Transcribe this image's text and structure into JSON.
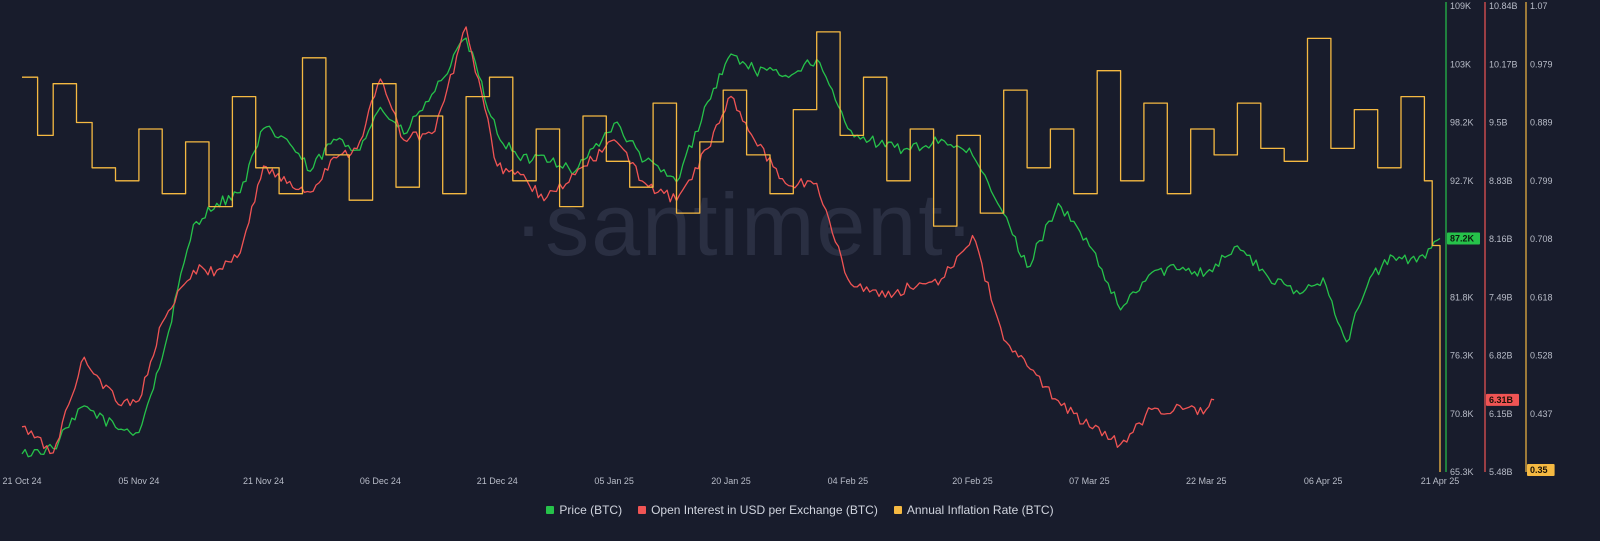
{
  "watermark": "·santiment·",
  "chart_data": {
    "type": "line",
    "x_ticks": [
      "21 Oct 24",
      "05 Nov 24",
      "21 Nov 24",
      "06 Dec 24",
      "21 Dec 24",
      "05 Jan 25",
      "20 Jan 25",
      "04 Feb 25",
      "20 Feb 25",
      "07 Mar 25",
      "22 Mar 25",
      "06 Apr 25",
      "21 Apr 25"
    ],
    "axes": [
      {
        "id": "price",
        "color": "#26c24a",
        "ticks": [
          "109K",
          "103K",
          "98.2K",
          "92.7K",
          "87.2K",
          "81.8K",
          "76.3K",
          "70.8K",
          "65.3K"
        ],
        "range": [
          65300,
          109000
        ],
        "current_label": "87.2K"
      },
      {
        "id": "oi",
        "color": "#f05454",
        "ticks": [
          "10.84B",
          "10.17B",
          "9.5B",
          "8.83B",
          "8.16B",
          "7.49B",
          "6.82B",
          "6.15B",
          "5.48B"
        ],
        "range": [
          5.48,
          10.84
        ],
        "current_label": "6.31B"
      },
      {
        "id": "inflation",
        "color": "#f5b942",
        "ticks": [
          "1.07",
          "0.979",
          "0.889",
          "0.799",
          "0.708",
          "0.618",
          "0.528",
          "0.437",
          "0.35"
        ],
        "range": [
          0.35,
          1.07
        ],
        "current_label": "0.35"
      }
    ],
    "series": [
      {
        "name": "Price (BTC)",
        "axis": "price",
        "color": "#26c24a",
        "x": [
          "21 Oct 24",
          "25 Oct 24",
          "29 Oct 24",
          "02 Nov 24",
          "05 Nov 24",
          "08 Nov 24",
          "12 Nov 24",
          "15 Nov 24",
          "18 Nov 24",
          "21 Nov 24",
          "24 Nov 24",
          "27 Nov 24",
          "30 Nov 24",
          "03 Dec 24",
          "06 Dec 24",
          "09 Dec 24",
          "13 Dec 24",
          "17 Dec 24",
          "21 Dec 24",
          "24 Dec 24",
          "27 Dec 24",
          "31 Dec 24",
          "05 Jan 25",
          "09 Jan 25",
          "13 Jan 25",
          "17 Jan 25",
          "20 Jan 25",
          "23 Jan 25",
          "27 Jan 25",
          "31 Jan 25",
          "04 Feb 25",
          "08 Feb 25",
          "12 Feb 25",
          "16 Feb 25",
          "20 Feb 25",
          "24 Feb 25",
          "27 Feb 25",
          "03 Mar 25",
          "07 Mar 25",
          "11 Mar 25",
          "15 Mar 25",
          "19 Mar 25",
          "22 Mar 25",
          "26 Mar 25",
          "30 Mar 25",
          "03 Apr 25",
          "06 Apr 25",
          "09 Apr 25",
          "12 Apr 25",
          "15 Apr 25",
          "18 Apr 25",
          "21 Apr 25"
        ],
        "values": [
          67000,
          67500,
          71500,
          69500,
          69000,
          76000,
          88500,
          90500,
          91500,
          97500,
          96500,
          93500,
          96500,
          95500,
          99500,
          97000,
          101000,
          106000,
          97000,
          94500,
          95000,
          93500,
          98000,
          94500,
          92500,
          100000,
          104500,
          103000,
          102500,
          104000,
          97500,
          96000,
          95500,
          96500,
          95000,
          89500,
          84500,
          90500,
          86500,
          80500,
          84000,
          84500,
          84000,
          86500,
          83500,
          82000,
          83500,
          77500,
          83500,
          85500,
          85000,
          87200
        ]
      },
      {
        "name": "Open Interest in USD per Exchange (BTC)",
        "axis": "oi",
        "color": "#f05454",
        "x": [
          "21 Oct 24",
          "25 Oct 24",
          "29 Oct 24",
          "02 Nov 24",
          "05 Nov 24",
          "08 Nov 24",
          "12 Nov 24",
          "15 Nov 24",
          "18 Nov 24",
          "21 Nov 24",
          "24 Nov 24",
          "27 Nov 24",
          "30 Nov 24",
          "03 Dec 24",
          "06 Dec 24",
          "09 Dec 24",
          "13 Dec 24",
          "17 Dec 24",
          "21 Dec 24",
          "24 Dec 24",
          "27 Dec 24",
          "31 Dec 24",
          "05 Jan 25",
          "09 Jan 25",
          "13 Jan 25",
          "17 Jan 25",
          "20 Jan 25",
          "23 Jan 25",
          "27 Jan 25",
          "31 Jan 25",
          "04 Feb 25",
          "08 Feb 25",
          "12 Feb 25",
          "16 Feb 25",
          "20 Feb 25",
          "24 Feb 25",
          "27 Feb 25",
          "03 Mar 25",
          "07 Mar 25",
          "11 Mar 25",
          "15 Mar 25",
          "19 Mar 25",
          "22 Mar 25",
          "23 Mar 25"
        ],
        "values": [
          6.0,
          5.7,
          6.8,
          6.3,
          6.3,
          7.2,
          7.8,
          7.8,
          8.0,
          9.0,
          8.8,
          8.7,
          9.1,
          9.2,
          10.0,
          9.3,
          9.4,
          10.6,
          9.0,
          8.9,
          8.6,
          8.9,
          9.3,
          8.8,
          8.6,
          9.2,
          9.8,
          9.3,
          8.8,
          8.8,
          7.7,
          7.5,
          7.6,
          7.7,
          8.2,
          7.0,
          6.7,
          6.3,
          6.0,
          5.8,
          6.2,
          6.2,
          6.2,
          6.31
        ]
      },
      {
        "name": "Annual Inflation Rate (BTC)",
        "axis": "inflation",
        "color": "#f5b942",
        "x": [
          "21 Oct 24",
          "23 Oct 24",
          "25 Oct 24",
          "28 Oct 24",
          "30 Oct 24",
          "02 Nov 24",
          "05 Nov 24",
          "08 Nov 24",
          "11 Nov 24",
          "14 Nov 24",
          "17 Nov 24",
          "20 Nov 24",
          "23 Nov 24",
          "26 Nov 24",
          "29 Nov 24",
          "02 Dec 24",
          "05 Dec 24",
          "08 Dec 24",
          "11 Dec 24",
          "14 Dec 24",
          "17 Dec 24",
          "20 Dec 24",
          "23 Dec 24",
          "26 Dec 24",
          "29 Dec 24",
          "01 Jan 25",
          "04 Jan 25",
          "07 Jan 25",
          "10 Jan 25",
          "13 Jan 25",
          "16 Jan 25",
          "19 Jan 25",
          "22 Jan 25",
          "25 Jan 25",
          "28 Jan 25",
          "31 Jan 25",
          "03 Feb 25",
          "06 Feb 25",
          "09 Feb 25",
          "12 Feb 25",
          "15 Feb 25",
          "18 Feb 25",
          "21 Feb 25",
          "24 Feb 25",
          "27 Feb 25",
          "02 Mar 25",
          "05 Mar 25",
          "08 Mar 25",
          "11 Mar 25",
          "14 Mar 25",
          "17 Mar 25",
          "20 Mar 25",
          "23 Mar 25",
          "26 Mar 25",
          "29 Mar 25",
          "01 Apr 25",
          "04 Apr 25",
          "07 Apr 25",
          "10 Apr 25",
          "13 Apr 25",
          "16 Apr 25",
          "19 Apr 25",
          "20 Apr 25",
          "21 Apr 25"
        ],
        "values": [
          0.96,
          0.87,
          0.95,
          0.89,
          0.82,
          0.8,
          0.88,
          0.78,
          0.86,
          0.76,
          0.93,
          0.82,
          0.78,
          0.99,
          0.84,
          0.77,
          0.95,
          0.79,
          0.9,
          0.78,
          0.93,
          0.96,
          0.8,
          0.88,
          0.76,
          0.9,
          0.83,
          0.79,
          0.92,
          0.75,
          0.86,
          0.94,
          0.84,
          0.78,
          0.91,
          1.03,
          0.87,
          0.96,
          0.8,
          0.88,
          0.73,
          0.87,
          0.75,
          0.94,
          0.82,
          0.88,
          0.78,
          0.97,
          0.8,
          0.92,
          0.78,
          0.88,
          0.84,
          0.92,
          0.85,
          0.83,
          1.02,
          0.85,
          0.91,
          0.82,
          0.93,
          0.8,
          0.7,
          0.35
        ]
      }
    ],
    "legend": [
      "Price (BTC)",
      "Open Interest in USD per Exchange (BTC)",
      "Annual Inflation Rate (BTC)"
    ],
    "grid": false,
    "legend_position": "bottom"
  }
}
